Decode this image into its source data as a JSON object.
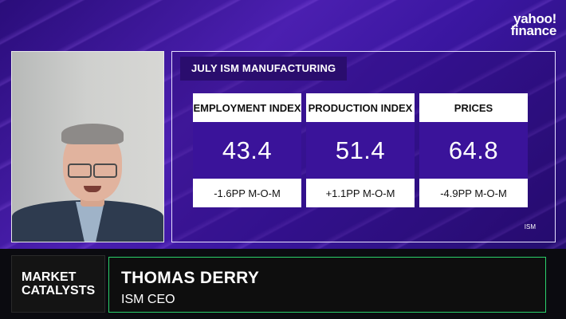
{
  "logo": {
    "line1": "yahoo!",
    "line2": "finance"
  },
  "panel": {
    "title": "JULY ISM MANUFACTURING",
    "source": "ISM",
    "stats": [
      {
        "label": "EMPLOYMENT INDEX",
        "value": "43.4",
        "change": "-1.6PP M-O-M"
      },
      {
        "label": "PRODUCTION INDEX",
        "value": "51.4",
        "change": "+1.1PP M-O-M"
      },
      {
        "label": "PRICES",
        "value": "64.8",
        "change": "-4.9PP M-O-M"
      }
    ]
  },
  "lower_third": {
    "show_line1": "MARKET",
    "show_line2": "CATALYSTS",
    "name": "THOMAS DERRY",
    "role": "ISM CEO",
    "accent_color": "#2bd16b"
  },
  "colors": {
    "background": "#3a16a0",
    "value_bg": "#3a139a"
  }
}
